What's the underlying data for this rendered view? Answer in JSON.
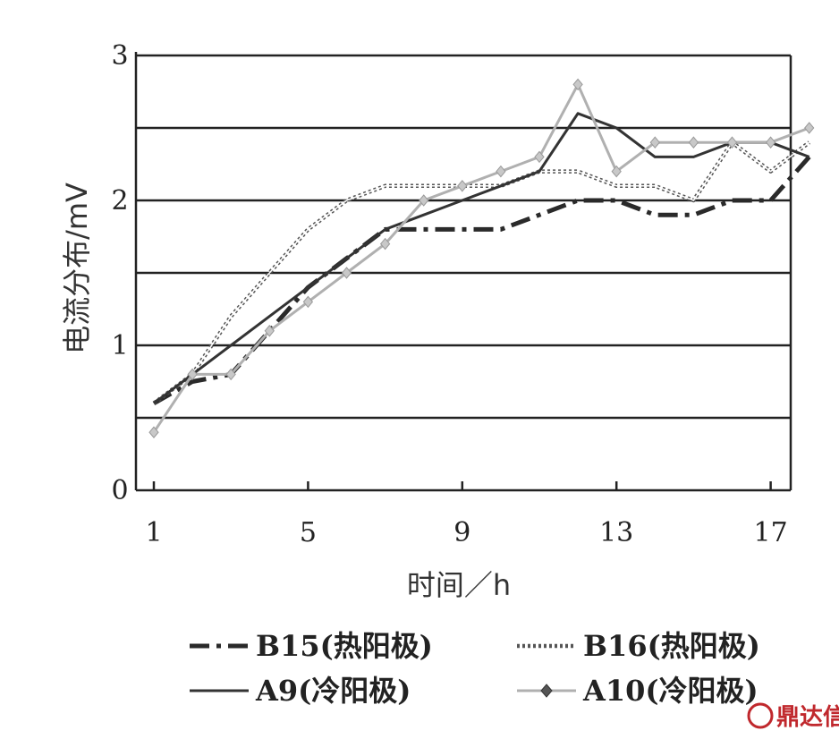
{
  "chart_data": {
    "type": "line",
    "xlabel": "时间／h",
    "ylabel": "电流分布/mV",
    "xlim": [
      1,
      18
    ],
    "ylim": [
      0,
      3
    ],
    "x_ticks": [
      "1",
      "5",
      "9",
      "13",
      "17"
    ],
    "y_ticks": [
      "0",
      "1",
      "2",
      "3"
    ],
    "grid": "horizontal lines at 0.5 intervals",
    "legend_position": "bottom",
    "x": [
      1,
      2,
      3,
      4,
      5,
      6,
      7,
      8,
      9,
      10,
      11,
      12,
      13,
      14,
      15,
      16,
      17,
      18
    ],
    "series": [
      {
        "name": "B15(热阳极)",
        "style": "dash-dot",
        "color": "#333333",
        "values": [
          0.6,
          0.75,
          0.8,
          1.1,
          1.4,
          1.6,
          1.8,
          1.8,
          1.8,
          1.8,
          1.9,
          2.0,
          2.0,
          1.9,
          1.9,
          2.0,
          2.0,
          2.3
        ]
      },
      {
        "name": "B16(热阳极)",
        "style": "double-dotted",
        "color": "#555555",
        "values": [
          0.6,
          0.8,
          1.2,
          1.5,
          1.8,
          2.0,
          2.1,
          2.1,
          2.1,
          2.1,
          2.2,
          2.2,
          2.1,
          2.1,
          2.0,
          2.4,
          2.2,
          2.4
        ]
      },
      {
        "name": "A9(冷阳极)",
        "style": "solid",
        "color": "#333333",
        "values": [
          0.6,
          0.8,
          1.0,
          1.2,
          1.4,
          1.6,
          1.8,
          1.9,
          2.0,
          2.1,
          2.2,
          2.6,
          2.5,
          2.3,
          2.3,
          2.4,
          2.4,
          2.3
        ]
      },
      {
        "name": "A10(冷阳极)",
        "style": "solid with diamond markers",
        "color": "#aaaaaa",
        "values": [
          0.4,
          0.8,
          0.8,
          1.1,
          1.3,
          1.5,
          1.7,
          2.0,
          2.1,
          2.2,
          2.3,
          2.8,
          2.2,
          2.4,
          2.4,
          2.4,
          2.4,
          2.5
        ]
      }
    ]
  },
  "watermark": "鼎达信"
}
